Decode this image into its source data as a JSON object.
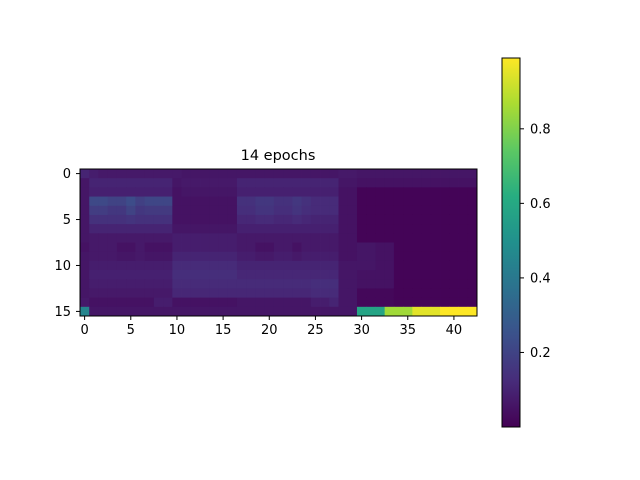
{
  "chart_data": {
    "type": "heatmap",
    "title": "14 epochs",
    "xlabel": "",
    "ylabel": "",
    "n_rows": 16,
    "n_cols": 43,
    "xticks": [
      0,
      5,
      10,
      15,
      20,
      25,
      30,
      35,
      40
    ],
    "yticks": [
      0,
      5,
      10,
      15
    ],
    "colormap": "viridis",
    "colorbar": {
      "range": [
        0.0,
        0.99
      ],
      "ticks": [
        0.2,
        0.4,
        0.6,
        0.8
      ],
      "tick_labels": [
        "0.2",
        "0.4",
        "0.6",
        "0.8"
      ]
    },
    "values": [
      [
        0.1,
        0.08,
        0.07,
        0.07,
        0.07,
        0.07,
        0.07,
        0.07,
        0.07,
        0.07,
        0.07,
        0.06,
        0.06,
        0.06,
        0.06,
        0.06,
        0.06,
        0.06,
        0.06,
        0.06,
        0.06,
        0.06,
        0.06,
        0.06,
        0.06,
        0.06,
        0.06,
        0.06,
        0.07,
        0.07,
        0.06,
        0.06,
        0.06,
        0.06,
        0.06,
        0.06,
        0.06,
        0.06,
        0.06,
        0.06,
        0.06,
        0.06,
        0.06
      ],
      [
        0.06,
        0.1,
        0.1,
        0.1,
        0.1,
        0.1,
        0.1,
        0.1,
        0.1,
        0.1,
        0.06,
        0.07,
        0.07,
        0.07,
        0.07,
        0.07,
        0.07,
        0.1,
        0.1,
        0.1,
        0.1,
        0.1,
        0.1,
        0.1,
        0.1,
        0.1,
        0.1,
        0.1,
        0.06,
        0.06,
        0.05,
        0.05,
        0.05,
        0.05,
        0.05,
        0.05,
        0.05,
        0.05,
        0.05,
        0.05,
        0.05,
        0.05,
        0.05
      ],
      [
        0.06,
        0.09,
        0.09,
        0.09,
        0.09,
        0.09,
        0.09,
        0.09,
        0.09,
        0.09,
        0.05,
        0.06,
        0.06,
        0.06,
        0.06,
        0.06,
        0.06,
        0.09,
        0.09,
        0.09,
        0.09,
        0.09,
        0.09,
        0.09,
        0.09,
        0.09,
        0.09,
        0.09,
        0.05,
        0.05,
        0.01,
        0.01,
        0.01,
        0.01,
        0.01,
        0.01,
        0.01,
        0.01,
        0.01,
        0.01,
        0.01,
        0.01,
        0.01
      ],
      [
        0.06,
        0.22,
        0.22,
        0.2,
        0.2,
        0.23,
        0.19,
        0.21,
        0.21,
        0.21,
        0.05,
        0.05,
        0.05,
        0.05,
        0.05,
        0.05,
        0.05,
        0.14,
        0.14,
        0.16,
        0.16,
        0.14,
        0.14,
        0.16,
        0.14,
        0.12,
        0.12,
        0.12,
        0.05,
        0.05,
        0.01,
        0.01,
        0.01,
        0.01,
        0.01,
        0.01,
        0.01,
        0.01,
        0.01,
        0.01,
        0.01,
        0.01,
        0.01
      ],
      [
        0.06,
        0.18,
        0.18,
        0.16,
        0.16,
        0.2,
        0.16,
        0.17,
        0.17,
        0.17,
        0.05,
        0.05,
        0.05,
        0.05,
        0.05,
        0.05,
        0.05,
        0.13,
        0.13,
        0.15,
        0.15,
        0.13,
        0.13,
        0.15,
        0.13,
        0.12,
        0.12,
        0.12,
        0.05,
        0.05,
        0.01,
        0.01,
        0.01,
        0.01,
        0.01,
        0.01,
        0.01,
        0.01,
        0.01,
        0.01,
        0.01,
        0.01,
        0.01
      ],
      [
        0.06,
        0.14,
        0.14,
        0.14,
        0.14,
        0.15,
        0.14,
        0.14,
        0.14,
        0.14,
        0.05,
        0.05,
        0.05,
        0.05,
        0.05,
        0.05,
        0.05,
        0.11,
        0.11,
        0.12,
        0.12,
        0.11,
        0.11,
        0.12,
        0.11,
        0.1,
        0.1,
        0.1,
        0.05,
        0.05,
        0.01,
        0.01,
        0.01,
        0.01,
        0.01,
        0.01,
        0.01,
        0.01,
        0.01,
        0.01,
        0.01,
        0.01,
        0.01
      ],
      [
        0.06,
        0.1,
        0.1,
        0.1,
        0.1,
        0.1,
        0.1,
        0.1,
        0.1,
        0.1,
        0.06,
        0.06,
        0.06,
        0.06,
        0.06,
        0.06,
        0.06,
        0.09,
        0.09,
        0.09,
        0.09,
        0.09,
        0.09,
        0.09,
        0.09,
        0.09,
        0.09,
        0.09,
        0.05,
        0.05,
        0.01,
        0.01,
        0.01,
        0.01,
        0.01,
        0.01,
        0.01,
        0.01,
        0.01,
        0.01,
        0.01,
        0.01,
        0.01
      ],
      [
        0.06,
        0.07,
        0.07,
        0.07,
        0.07,
        0.07,
        0.07,
        0.07,
        0.07,
        0.07,
        0.08,
        0.08,
        0.08,
        0.08,
        0.08,
        0.08,
        0.08,
        0.07,
        0.07,
        0.07,
        0.07,
        0.07,
        0.07,
        0.07,
        0.07,
        0.07,
        0.07,
        0.07,
        0.05,
        0.05,
        0.01,
        0.01,
        0.01,
        0.01,
        0.01,
        0.01,
        0.01,
        0.01,
        0.01,
        0.01,
        0.01,
        0.01,
        0.01
      ],
      [
        0.05,
        0.07,
        0.07,
        0.07,
        0.05,
        0.05,
        0.07,
        0.05,
        0.05,
        0.05,
        0.08,
        0.08,
        0.08,
        0.08,
        0.08,
        0.08,
        0.08,
        0.07,
        0.07,
        0.05,
        0.05,
        0.07,
        0.07,
        0.05,
        0.07,
        0.07,
        0.07,
        0.07,
        0.05,
        0.05,
        0.06,
        0.06,
        0.05,
        0.05,
        0.01,
        0.01,
        0.01,
        0.01,
        0.01,
        0.01,
        0.01,
        0.01,
        0.01
      ],
      [
        0.06,
        0.07,
        0.07,
        0.07,
        0.06,
        0.06,
        0.07,
        0.06,
        0.06,
        0.06,
        0.1,
        0.1,
        0.1,
        0.1,
        0.1,
        0.1,
        0.1,
        0.08,
        0.08,
        0.07,
        0.07,
        0.08,
        0.08,
        0.07,
        0.08,
        0.08,
        0.08,
        0.08,
        0.05,
        0.05,
        0.06,
        0.06,
        0.05,
        0.05,
        0.01,
        0.01,
        0.01,
        0.01,
        0.01,
        0.01,
        0.01,
        0.01,
        0.01
      ],
      [
        0.06,
        0.08,
        0.08,
        0.08,
        0.08,
        0.08,
        0.08,
        0.08,
        0.08,
        0.08,
        0.12,
        0.12,
        0.12,
        0.12,
        0.12,
        0.12,
        0.12,
        0.1,
        0.1,
        0.1,
        0.1,
        0.1,
        0.1,
        0.1,
        0.1,
        0.1,
        0.1,
        0.1,
        0.06,
        0.06,
        0.06,
        0.06,
        0.05,
        0.05,
        0.01,
        0.01,
        0.01,
        0.01,
        0.01,
        0.01,
        0.01,
        0.01,
        0.01
      ],
      [
        0.06,
        0.09,
        0.09,
        0.09,
        0.09,
        0.09,
        0.09,
        0.09,
        0.09,
        0.09,
        0.13,
        0.13,
        0.13,
        0.13,
        0.13,
        0.13,
        0.13,
        0.11,
        0.11,
        0.11,
        0.11,
        0.11,
        0.11,
        0.11,
        0.11,
        0.11,
        0.11,
        0.11,
        0.06,
        0.06,
        0.05,
        0.05,
        0.05,
        0.05,
        0.01,
        0.01,
        0.01,
        0.01,
        0.01,
        0.01,
        0.01,
        0.01,
        0.01
      ],
      [
        0.06,
        0.08,
        0.08,
        0.08,
        0.08,
        0.08,
        0.08,
        0.08,
        0.08,
        0.08,
        0.12,
        0.12,
        0.12,
        0.12,
        0.12,
        0.12,
        0.12,
        0.12,
        0.12,
        0.12,
        0.12,
        0.12,
        0.12,
        0.12,
        0.12,
        0.13,
        0.13,
        0.13,
        0.06,
        0.06,
        0.05,
        0.05,
        0.05,
        0.05,
        0.01,
        0.01,
        0.01,
        0.01,
        0.01,
        0.01,
        0.01,
        0.01,
        0.01
      ],
      [
        0.06,
        0.07,
        0.07,
        0.07,
        0.07,
        0.07,
        0.07,
        0.07,
        0.07,
        0.07,
        0.11,
        0.11,
        0.11,
        0.11,
        0.11,
        0.11,
        0.11,
        0.11,
        0.11,
        0.11,
        0.11,
        0.11,
        0.11,
        0.11,
        0.11,
        0.12,
        0.12,
        0.12,
        0.06,
        0.06,
        0.02,
        0.02,
        0.02,
        0.02,
        0.01,
        0.01,
        0.01,
        0.01,
        0.01,
        0.01,
        0.01,
        0.01,
        0.01
      ],
      [
        0.07,
        0.05,
        0.05,
        0.05,
        0.05,
        0.05,
        0.05,
        0.05,
        0.08,
        0.08,
        0.05,
        0.05,
        0.05,
        0.05,
        0.05,
        0.05,
        0.05,
        0.06,
        0.06,
        0.06,
        0.06,
        0.06,
        0.06,
        0.06,
        0.06,
        0.08,
        0.08,
        0.1,
        0.06,
        0.06,
        0.02,
        0.02,
        0.02,
        0.02,
        0.01,
        0.01,
        0.01,
        0.01,
        0.01,
        0.01,
        0.01,
        0.01,
        0.01
      ],
      [
        0.45,
        0.06,
        0.06,
        0.06,
        0.06,
        0.06,
        0.06,
        0.06,
        0.06,
        0.06,
        0.06,
        0.06,
        0.06,
        0.06,
        0.06,
        0.06,
        0.06,
        0.06,
        0.06,
        0.06,
        0.06,
        0.06,
        0.06,
        0.06,
        0.06,
        0.06,
        0.06,
        0.06,
        0.06,
        0.06,
        0.58,
        0.58,
        0.58,
        0.85,
        0.85,
        0.85,
        0.95,
        0.95,
        0.95,
        0.99,
        0.99,
        0.99,
        0.99
      ]
    ]
  }
}
